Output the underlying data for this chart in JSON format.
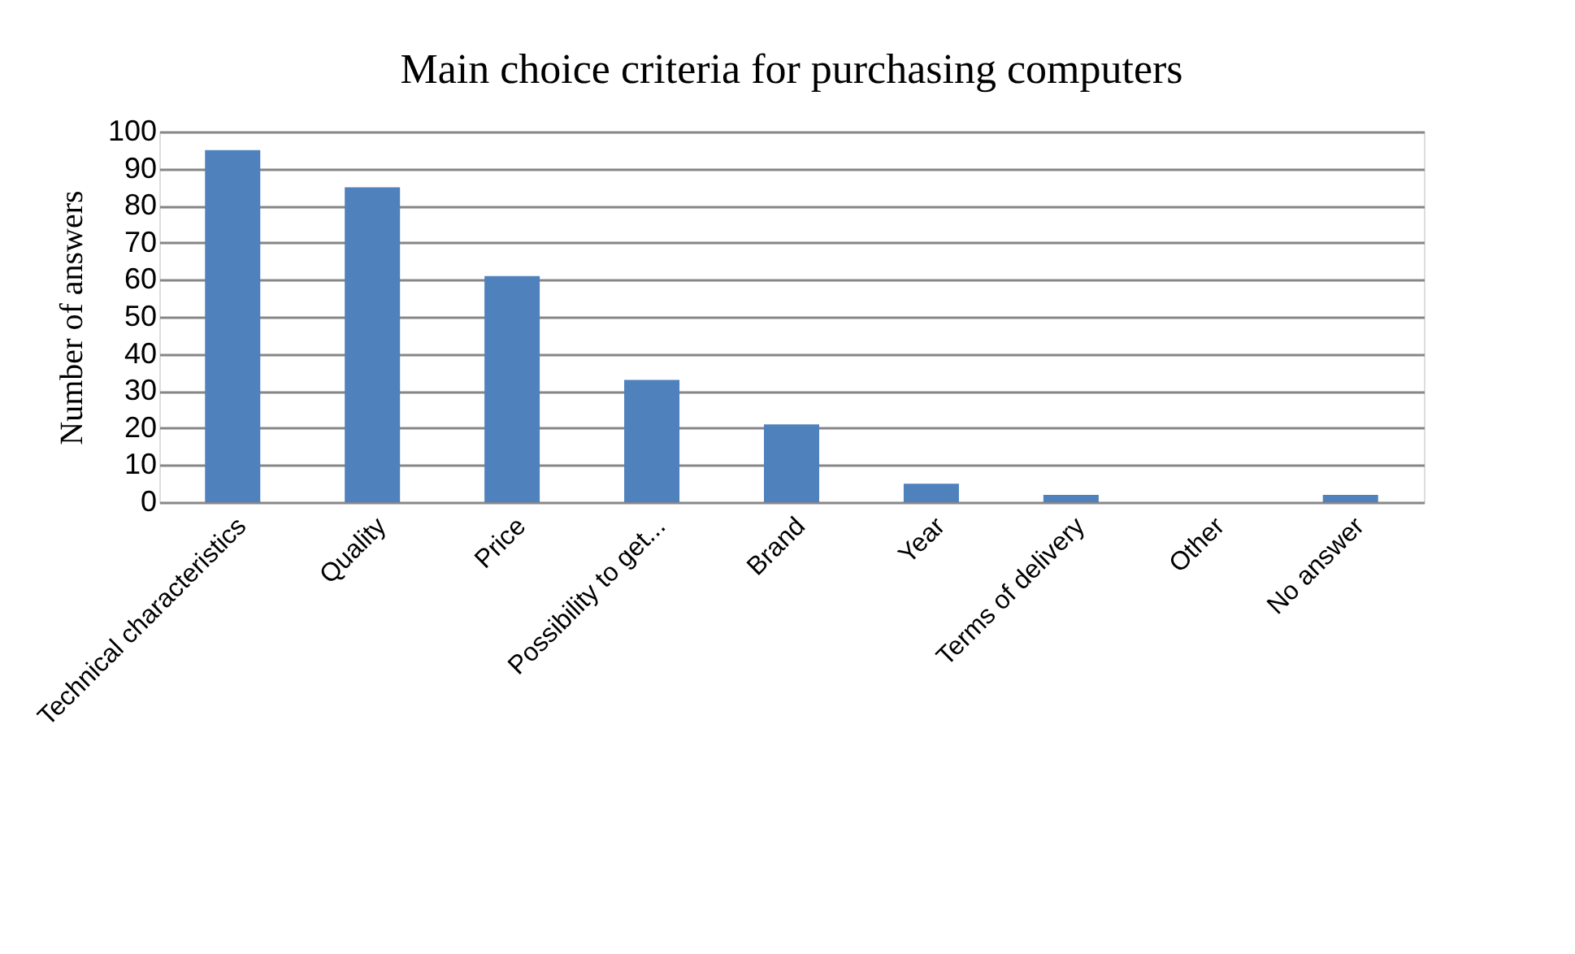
{
  "chart_data": {
    "type": "bar",
    "title": "Main choice criteria for purchasing computers",
    "ylabel": "Number of answers",
    "categories": [
      "Technical characteristics",
      "Quality",
      "Price",
      "Possibility to get...",
      "Brand",
      "Year",
      "Terms of delivery",
      "Other",
      "No answer"
    ],
    "values": [
      95,
      85,
      61,
      33,
      21,
      5,
      2,
      0,
      2
    ],
    "color": "#4f81bd",
    "ylim": [
      0,
      100
    ],
    "yticks": [
      0,
      10,
      20,
      30,
      40,
      50,
      60,
      70,
      80,
      90,
      100
    ],
    "grid": "y"
  }
}
